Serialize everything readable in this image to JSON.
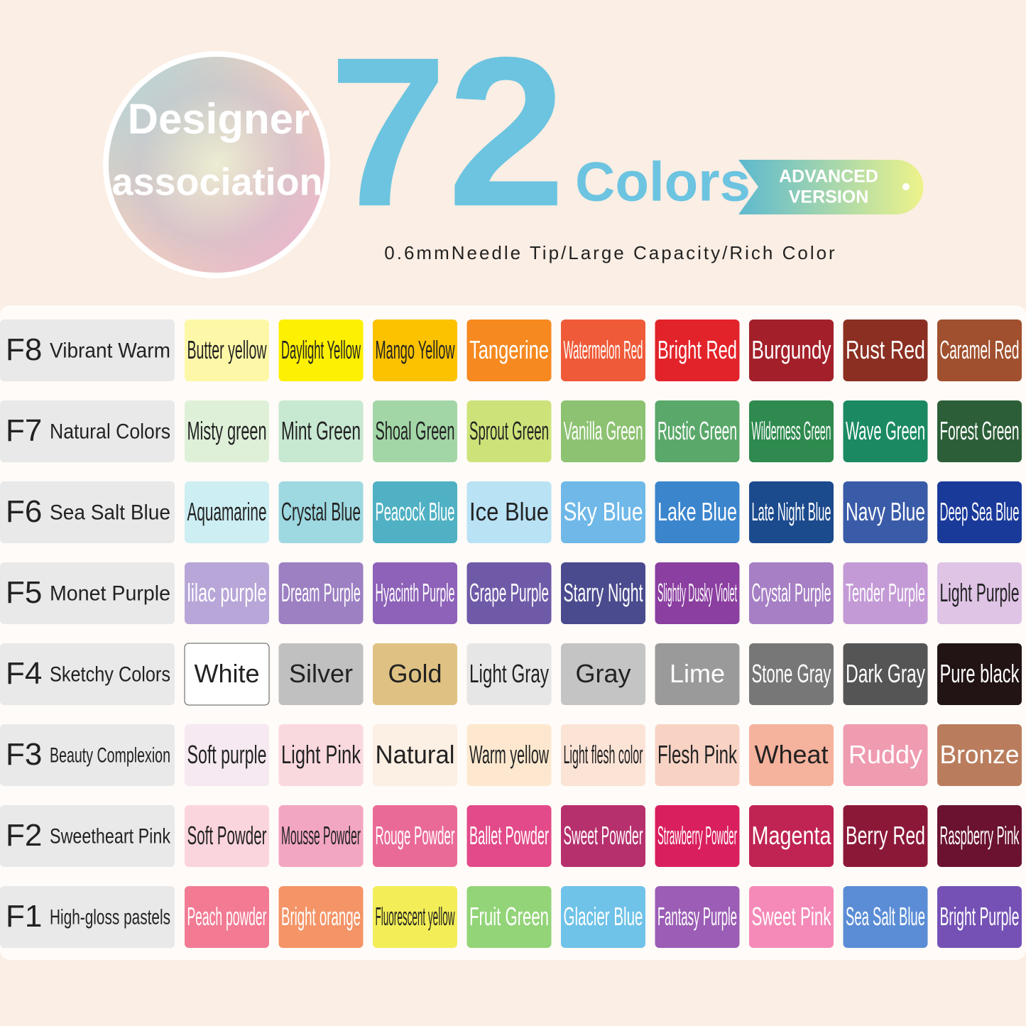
{
  "header": {
    "badge": [
      "Designer",
      "association"
    ],
    "count": "72",
    "unit": "Colors",
    "ribbon": [
      "ADVANCED",
      "VERSION"
    ],
    "subtitle": "0.6mmNeedle Tip/Large Capacity/Rich Color"
  },
  "rows": [
    {
      "code": "F8",
      "name": "Vibrant Warm",
      "swatches": [
        {
          "name": "Butter yellow",
          "color": "#fdf8a8"
        },
        {
          "name": "Daylight Yellow",
          "color": "#fdf000"
        },
        {
          "name": "Mango Yellow",
          "color": "#fcc200"
        },
        {
          "name": "Tangerine",
          "color": "#f6891f"
        },
        {
          "name": "Watermelon Red",
          "color": "#ef5a38"
        },
        {
          "name": "Bright Red",
          "color": "#e3232a"
        },
        {
          "name": "Burgundy",
          "color": "#a3202a"
        },
        {
          "name": "Rust Red",
          "color": "#8b2f22"
        },
        {
          "name": "Caramel Red",
          "color": "#a0502e"
        }
      ]
    },
    {
      "code": "F7",
      "name": "Natural Colors",
      "swatches": [
        {
          "name": "Misty green",
          "color": "#dff0d8"
        },
        {
          "name": "Mint Green",
          "color": "#c7e8d1"
        },
        {
          "name": "Shoal Green",
          "color": "#a3d6a7"
        },
        {
          "name": "Sprout Green",
          "color": "#cde37a"
        },
        {
          "name": "Vanilla Green",
          "color": "#8cc271"
        },
        {
          "name": "Rustic Green",
          "color": "#5aa86a"
        },
        {
          "name": "Wilderness Green",
          "color": "#2e8a4e"
        },
        {
          "name": "Wave Green",
          "color": "#1b8a63"
        },
        {
          "name": "Forest Green",
          "color": "#2c5f38"
        }
      ]
    },
    {
      "code": "F6",
      "name": "Sea Salt Blue",
      "swatches": [
        {
          "name": "Aquamarine",
          "color": "#cdeef2"
        },
        {
          "name": "Crystal Blue",
          "color": "#9ed8e0"
        },
        {
          "name": "Peacock Blue",
          "color": "#4fb1c3"
        },
        {
          "name": "Ice Blue",
          "color": "#b9e2f5"
        },
        {
          "name": "Sky Blue",
          "color": "#6fb8e8"
        },
        {
          "name": "Lake Blue",
          "color": "#3b85cd"
        },
        {
          "name": "Late Night Blue",
          "color": "#1b4a8d"
        },
        {
          "name": "Navy Blue",
          "color": "#3a5ba8"
        },
        {
          "name": "Deep Sea Blue",
          "color": "#1a3a9a"
        }
      ]
    },
    {
      "code": "F5",
      "name": "Monet Purple",
      "swatches": [
        {
          "name": "lilac purple",
          "color": "#b8a6d8"
        },
        {
          "name": "Dream Purple",
          "color": "#9c80c2"
        },
        {
          "name": "Hyacinth Purple",
          "color": "#8d62b8"
        },
        {
          "name": "Grape Purple",
          "color": "#6f5aa8"
        },
        {
          "name": "Starry Night",
          "color": "#4a4a8e"
        },
        {
          "name": "Slightly Dusky Violet",
          "color": "#8b3fa0"
        },
        {
          "name": "Crystal Purple",
          "color": "#a67fc4"
        },
        {
          "name": "Tender Purple",
          "color": "#c49ad6"
        },
        {
          "name": "Light Purple",
          "color": "#dfc4e6"
        }
      ]
    },
    {
      "code": "F4",
      "name": "Sketchy Colors",
      "swatches": [
        {
          "name": "White",
          "color": "#ffffff"
        },
        {
          "name": "Silver",
          "color": "#c0c0c0"
        },
        {
          "name": "Gold",
          "color": "#dfc283"
        },
        {
          "name": "Light Gray",
          "color": "#e6e6e6"
        },
        {
          "name": "Gray",
          "color": "#c4c4c4"
        },
        {
          "name": "Lime",
          "color": "#9a9a9a"
        },
        {
          "name": "Stone Gray",
          "color": "#777777"
        },
        {
          "name": "Dark Gray",
          "color": "#555555"
        },
        {
          "name": "Pure black",
          "color": "#221414"
        }
      ]
    },
    {
      "code": "F3",
      "name": "Beauty Complexion",
      "swatches": [
        {
          "name": "Soft purple",
          "color": "#f6e9f1"
        },
        {
          "name": "Light Pink",
          "color": "#fad9de"
        },
        {
          "name": "Natural",
          "color": "#fcefe3"
        },
        {
          "name": "Warm yellow",
          "color": "#fde8cf"
        },
        {
          "name": "Light flesh color",
          "color": "#fbe3d6"
        },
        {
          "name": "Flesh Pink",
          "color": "#f8d3c4"
        },
        {
          "name": "Wheat",
          "color": "#f5b29c"
        },
        {
          "name": "Ruddy",
          "color": "#ef9bb0"
        },
        {
          "name": "Bronze",
          "color": "#b97d5d"
        }
      ]
    },
    {
      "code": "F2",
      "name": "Sweetheart Pink",
      "swatches": [
        {
          "name": "Soft Powder",
          "color": "#fbd5dd"
        },
        {
          "name": "Mousse Powder",
          "color": "#f3a6c2"
        },
        {
          "name": "Rouge Powder",
          "color": "#ea6a97"
        },
        {
          "name": "Ballet Powder",
          "color": "#e24a89"
        },
        {
          "name": "Sweet Powder",
          "color": "#b6306d"
        },
        {
          "name": "Strawberry Powder",
          "color": "#d91f5e"
        },
        {
          "name": "Magenta",
          "color": "#c02452"
        },
        {
          "name": "Berry Red",
          "color": "#8c1838"
        },
        {
          "name": "Raspberry Pink",
          "color": "#6a1230"
        }
      ]
    },
    {
      "code": "F1",
      "name": "High-gloss pastels",
      "swatches": [
        {
          "name": "Peach powder",
          "color": "#f27a93"
        },
        {
          "name": "Bright orange",
          "color": "#f49467"
        },
        {
          "name": "Fluorescent yellow",
          "color": "#f3ee57"
        },
        {
          "name": "Fruit Green",
          "color": "#93d478"
        },
        {
          "name": "Glacier Blue",
          "color": "#6fc2e8"
        },
        {
          "name": "Fantasy Purple",
          "color": "#9b5db5"
        },
        {
          "name": "Sweet Pink",
          "color": "#f58ab8"
        },
        {
          "name": "Sea Salt Blue",
          "color": "#5b8dd6"
        },
        {
          "name": "Bright Purple",
          "color": "#7551b5"
        }
      ]
    }
  ]
}
